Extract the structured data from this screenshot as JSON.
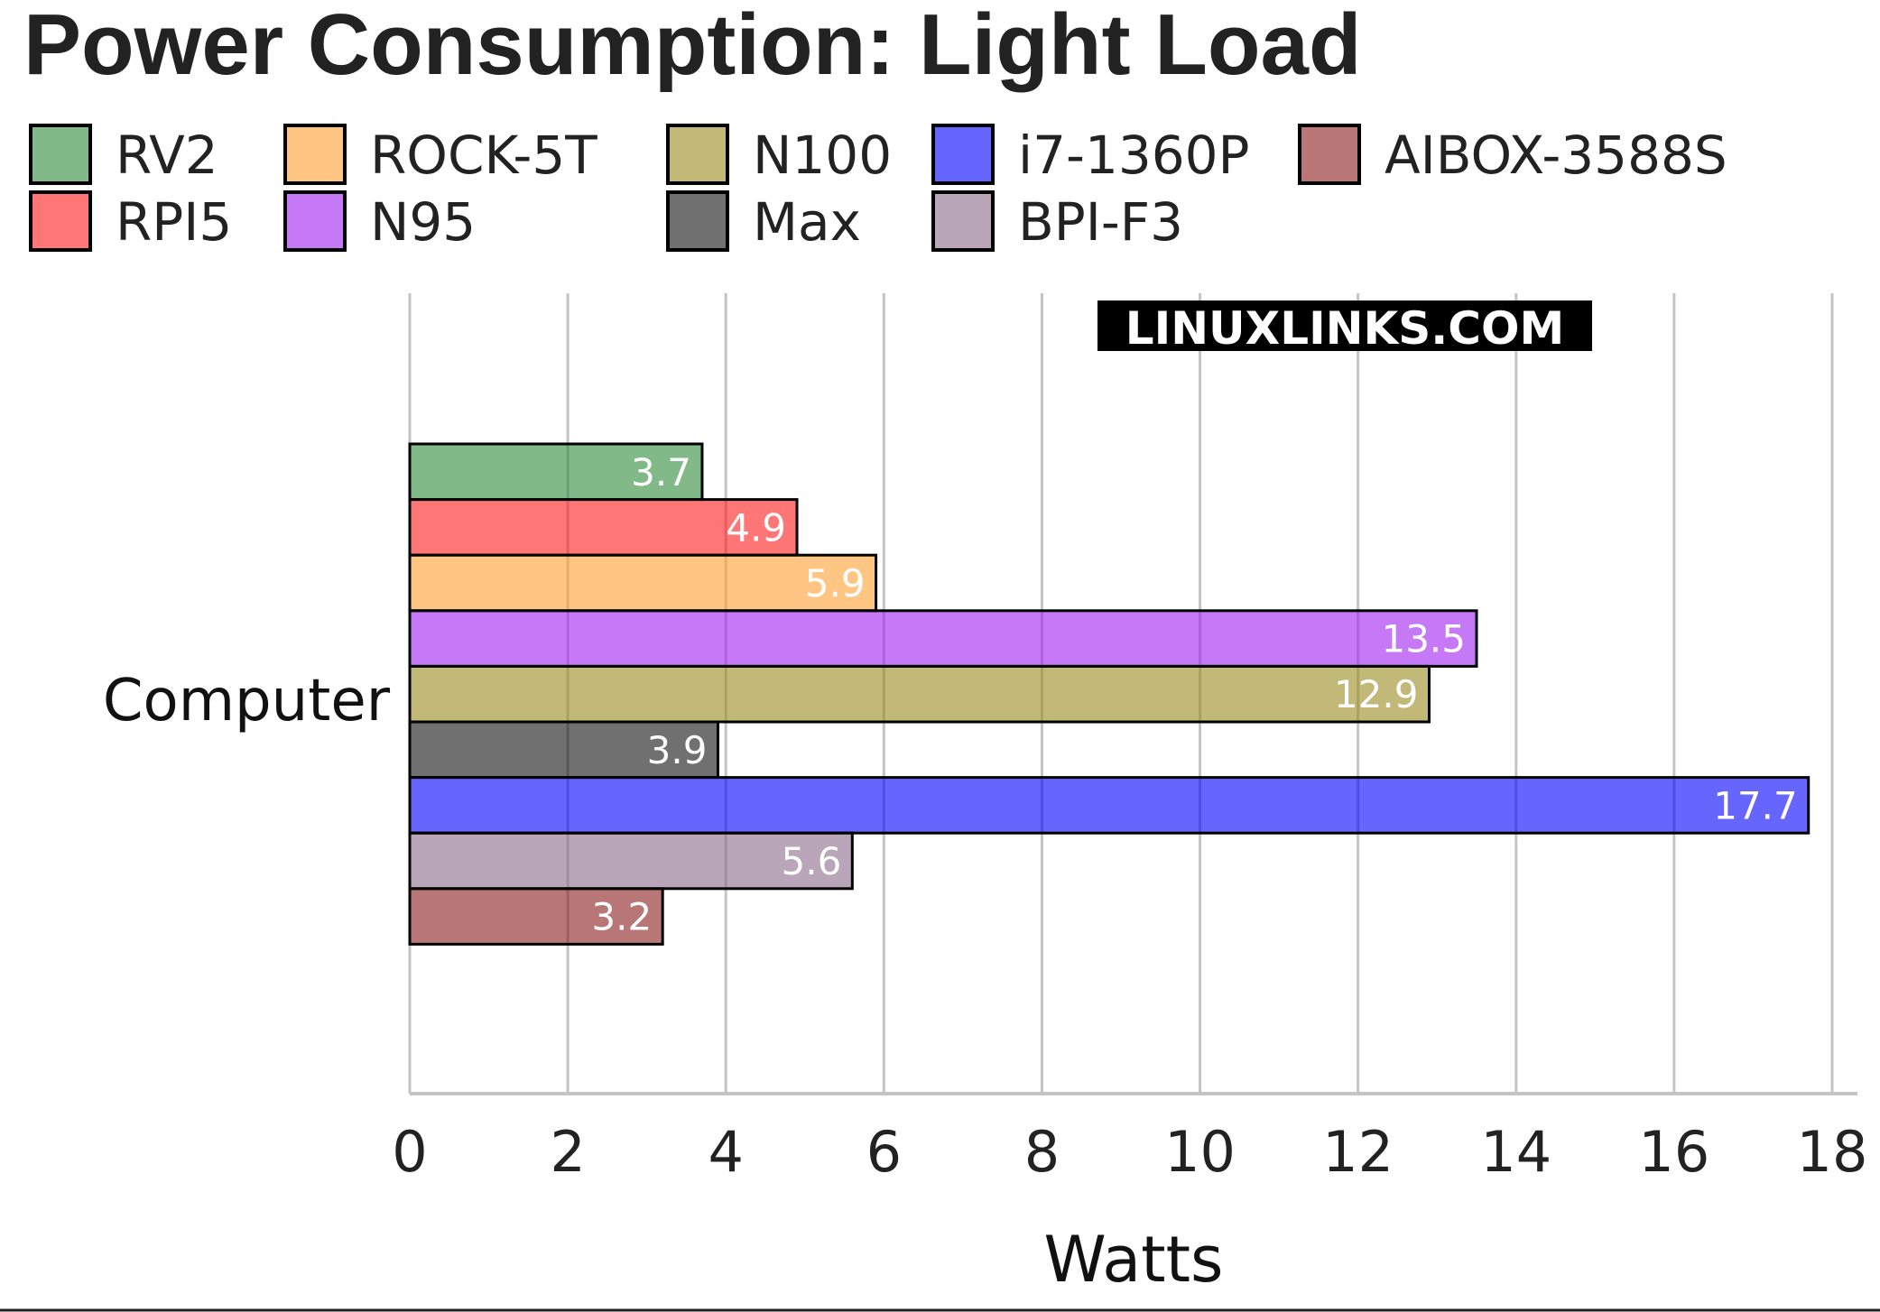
{
  "chart_data": {
    "type": "bar",
    "orientation": "horizontal",
    "title": "Power Consumption: Light Load",
    "xlabel": "Watts",
    "ylabel": "",
    "xlim": [
      0,
      18.2
    ],
    "xticks": [
      0,
      2,
      4,
      6,
      8,
      10,
      12,
      14,
      16,
      18
    ],
    "categories": [
      "Computer"
    ],
    "grid": "vertical",
    "legend_position": "top",
    "watermark": "LINUXLINKS.COM",
    "series": [
      {
        "name": "RV2",
        "values": [
          3.7
        ],
        "color": "#2e8b3a"
      },
      {
        "name": "RPI5",
        "values": [
          4.9
        ],
        "color": "#ff1a1a"
      },
      {
        "name": "ROCK-5T",
        "values": [
          5.9
        ],
        "color": "#ffa030"
      },
      {
        "name": "N95",
        "values": [
          13.5
        ],
        "color": "#a020f0"
      },
      {
        "name": "N100",
        "values": [
          12.9
        ],
        "color": "#9a8a20"
      },
      {
        "name": "Max",
        "values": [
          3.9
        ],
        "color": "#111111"
      },
      {
        "name": "i7-1360P",
        "values": [
          17.7
        ],
        "color": "#0000ff"
      },
      {
        "name": "BPI-F3",
        "values": [
          5.6
        ],
        "color": "#8a6a8a"
      },
      {
        "name": "AIBOX-3588S",
        "values": [
          3.2
        ],
        "color": "#8b1a1a"
      }
    ],
    "legend_order": [
      "RV2",
      "RPI5",
      "ROCK-5T",
      "N95",
      "N100",
      "Max",
      "i7-1360P",
      "BPI-F3",
      "AIBOX-3588S"
    ]
  }
}
